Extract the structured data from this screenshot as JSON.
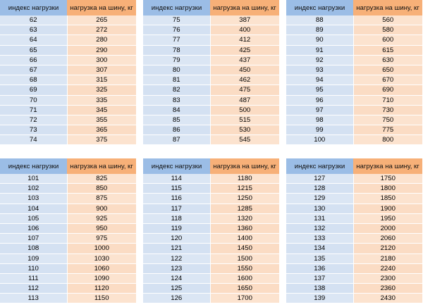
{
  "headers": {
    "index": "индекс нагрузки",
    "load": "нагрузка на шину, кг"
  },
  "colors": {
    "header_index_bg": "#9bbde6",
    "header_load_bg": "#f7b078",
    "cell_index_bg": "#dbe6f4",
    "cell_load_bg": "#fce3cf"
  },
  "tables": [
    {
      "rows": [
        [
          "62",
          "265"
        ],
        [
          "63",
          "272"
        ],
        [
          "64",
          "280"
        ],
        [
          "65",
          "290"
        ],
        [
          "66",
          "300"
        ],
        [
          "67",
          "307"
        ],
        [
          "68",
          "315"
        ],
        [
          "69",
          "325"
        ],
        [
          "70",
          "335"
        ],
        [
          "71",
          "345"
        ],
        [
          "72",
          "355"
        ],
        [
          "73",
          "365"
        ],
        [
          "74",
          "375"
        ]
      ]
    },
    {
      "rows": [
        [
          "75",
          "387"
        ],
        [
          "76",
          "400"
        ],
        [
          "77",
          "412"
        ],
        [
          "78",
          "425"
        ],
        [
          "79",
          "437"
        ],
        [
          "80",
          "450"
        ],
        [
          "81",
          "462"
        ],
        [
          "82",
          "475"
        ],
        [
          "83",
          "487"
        ],
        [
          "84",
          "500"
        ],
        [
          "85",
          "515"
        ],
        [
          "86",
          "530"
        ],
        [
          "87",
          "545"
        ]
      ]
    },
    {
      "rows": [
        [
          "88",
          "560"
        ],
        [
          "89",
          "580"
        ],
        [
          "90",
          "600"
        ],
        [
          "91",
          "615"
        ],
        [
          "92",
          "630"
        ],
        [
          "93",
          "650"
        ],
        [
          "94",
          "670"
        ],
        [
          "95",
          "690"
        ],
        [
          "96",
          "710"
        ],
        [
          "97",
          "730"
        ],
        [
          "98",
          "750"
        ],
        [
          "99",
          "775"
        ],
        [
          "100",
          "800"
        ]
      ]
    },
    {
      "rows": [
        [
          "101",
          "825"
        ],
        [
          "102",
          "850"
        ],
        [
          "103",
          "875"
        ],
        [
          "104",
          "900"
        ],
        [
          "105",
          "925"
        ],
        [
          "106",
          "950"
        ],
        [
          "107",
          "975"
        ],
        [
          "108",
          "1000"
        ],
        [
          "109",
          "1030"
        ],
        [
          "110",
          "1060"
        ],
        [
          "111",
          "1090"
        ],
        [
          "112",
          "1120"
        ],
        [
          "113",
          "1150"
        ]
      ]
    },
    {
      "rows": [
        [
          "114",
          "1180"
        ],
        [
          "115",
          "1215"
        ],
        [
          "116",
          "1250"
        ],
        [
          "117",
          "1285"
        ],
        [
          "118",
          "1320"
        ],
        [
          "119",
          "1360"
        ],
        [
          "120",
          "1400"
        ],
        [
          "121",
          "1450"
        ],
        [
          "122",
          "1500"
        ],
        [
          "123",
          "1550"
        ],
        [
          "124",
          "1600"
        ],
        [
          "125",
          "1650"
        ],
        [
          "126",
          "1700"
        ]
      ]
    },
    {
      "rows": [
        [
          "127",
          "1750"
        ],
        [
          "128",
          "1800"
        ],
        [
          "129",
          "1850"
        ],
        [
          "130",
          "1900"
        ],
        [
          "131",
          "1950"
        ],
        [
          "132",
          "2000"
        ],
        [
          "133",
          "2060"
        ],
        [
          "134",
          "2120"
        ],
        [
          "135",
          "2180"
        ],
        [
          "136",
          "2240"
        ],
        [
          "137",
          "2300"
        ],
        [
          "138",
          "2360"
        ],
        [
          "139",
          "2430"
        ]
      ]
    }
  ]
}
